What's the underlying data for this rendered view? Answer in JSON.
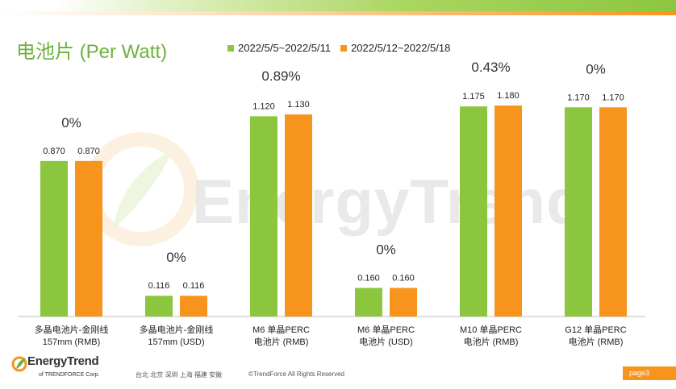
{
  "title": "电池片 (Per Watt)",
  "watermark": "EnergyTrend",
  "legend": [
    {
      "label": "2022/5/5~2022/5/11",
      "color": "#8cc63f"
    },
    {
      "label": "2022/5/12~2022/5/18",
      "color": "#f7941d"
    }
  ],
  "chart_data": {
    "type": "bar",
    "title": "电池片 (Per Watt)",
    "categories": [
      [
        "多晶电池片-金刚线",
        "157mm (RMB)"
      ],
      [
        "多晶电池片-金刚线",
        "157mm (USD)"
      ],
      [
        "M6 单晶PERC",
        "电池片 (RMB)"
      ],
      [
        "M6 单晶PERC",
        "电池片 (USD)"
      ],
      [
        "M10 单晶PERC",
        "电池片 (RMB)"
      ],
      [
        "G12 单晶PERC",
        "电池片 (RMB)"
      ]
    ],
    "series": [
      {
        "name": "2022/5/5~2022/5/11",
        "color": "#8cc63f",
        "values": [
          0.87,
          0.116,
          1.12,
          0.16,
          1.175,
          1.17
        ],
        "labels": [
          "0.870",
          "0.116",
          "1.120",
          "0.160",
          "1.175",
          "1.170"
        ]
      },
      {
        "name": "2022/5/12~2022/5/18",
        "color": "#f7941d",
        "values": [
          0.87,
          0.116,
          1.13,
          0.16,
          1.18,
          1.17
        ],
        "labels": [
          "0.870",
          "0.116",
          "1.130",
          "0.160",
          "1.180",
          "1.170"
        ]
      }
    ],
    "changes": [
      "0%",
      "0%",
      "0.89%",
      "0%",
      "0.43%",
      "0%"
    ],
    "grid": false,
    "legend_position": "top"
  },
  "footer": {
    "logo_text": "EnergyTrend",
    "logo_sub": "of TRENDFORCE Corp.",
    "cities": "台北  北京  深圳  上海  福建  安徽",
    "copyright": "©TrendForce All Rights Reserved",
    "page": "page3"
  }
}
